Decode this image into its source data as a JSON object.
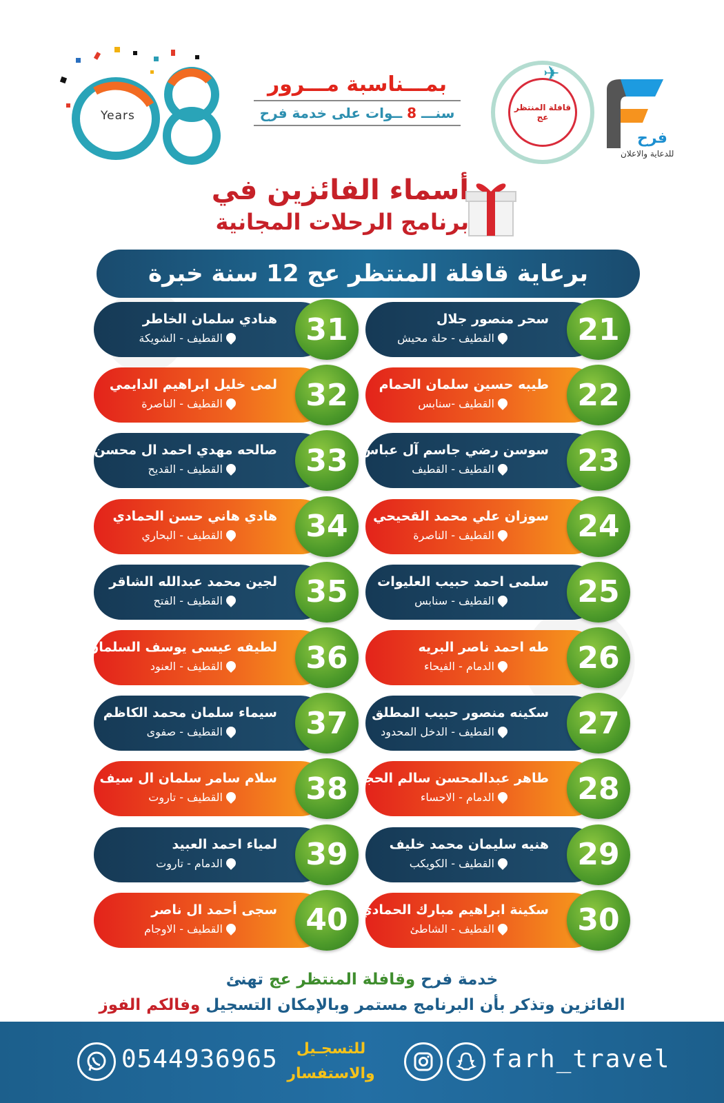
{
  "header": {
    "years_label": "Years",
    "years_number": "08",
    "occasion_line1": "بمـــناسبة مـــرور",
    "occasion_line2_a": "سنـــ",
    "occasion_line2_num": "8",
    "occasion_line2_b": "ــوات على خدمة فرح",
    "partner_name": "قافلة المنتظر عج",
    "brand_name": "فرح",
    "brand_tagline": "للدعاية والاعلان"
  },
  "title": {
    "line1": "أسماء الفائزين في",
    "line2": "برنامج الرحلات المجانية",
    "sponsor": "برعاية قافلة المنتظر عج 12 سنة خبرة"
  },
  "winners": [
    {
      "num": "21",
      "name": "سحر منصور جلال",
      "loc": "القطيف - حلة محيش"
    },
    {
      "num": "22",
      "name": "طيبه حسين سلمان الحمام",
      "loc": "القطيف -سنابس"
    },
    {
      "num": "23",
      "name": "سوسن رضي جاسم آل عباس",
      "loc": "القطيف - القطيف"
    },
    {
      "num": "24",
      "name": "سوزان علي محمد القحيحي",
      "loc": "القطيف - الناصرة"
    },
    {
      "num": "25",
      "name": "سلمى احمد حبيب العليوات",
      "loc": "القطيف - سنابس"
    },
    {
      "num": "26",
      "name": "طه احمد ناصر البريه",
      "loc": "الدمام - الفيحاء"
    },
    {
      "num": "27",
      "name": "سكينه منصور حبيب المطلق",
      "loc": "القطيف - الدخل المحدود"
    },
    {
      "num": "28",
      "name": "طاهر عبدالمحسن سالم الحجاب",
      "loc": "الدمام - الاحساء"
    },
    {
      "num": "29",
      "name": "هنيه سليمان محمد خليف",
      "loc": "القطيف - الكويكب"
    },
    {
      "num": "30",
      "name": "سكينة ابراهيم مبارك الحمادي",
      "loc": "القطيف - الشاطئ"
    },
    {
      "num": "31",
      "name": "هنادي سلمان الخاطر",
      "loc": "القطيف - الشويكة"
    },
    {
      "num": "32",
      "name": "لمى خليل ابراهيم الدايمي",
      "loc": "القطيف - الناصرة"
    },
    {
      "num": "33",
      "name": "صالحه مهدي احمد ال محسن",
      "loc": "القطيف - القديح"
    },
    {
      "num": "34",
      "name": "هادي هاني حسن الحمادي",
      "loc": "القطيف - البحاري"
    },
    {
      "num": "35",
      "name": "لجين محمد عبدالله الشاقر",
      "loc": "القطيف - الفتح"
    },
    {
      "num": "36",
      "name": "لطيفه عيسى يوسف السلمان",
      "loc": "القطيف - العنود"
    },
    {
      "num": "37",
      "name": "سيماء سلمان محمد الكاظم",
      "loc": "القطيف - صفوى"
    },
    {
      "num": "38",
      "name": "سلام سامر سلمان ال سيف",
      "loc": "القطيف - تاروت"
    },
    {
      "num": "39",
      "name": "لمياء احمد العبيد",
      "loc": "الدمام - تاروت"
    },
    {
      "num": "40",
      "name": "سجى أحمد ال ناصر",
      "loc": "القطيف - الاوجام"
    }
  ],
  "congrats": {
    "l1_a": "خدمة فرح ",
    "l1_b": "وقافلة المنتظر عج",
    "l1_c": " تهنئ",
    "l2_a": "الفائزين وتذكر بأن البرنامج مستمر وبالإمكان التسجيل ",
    "l2_b": "وفالكم الفوز"
  },
  "footer": {
    "phone": "0544936965",
    "register_line1": "للتسجـيل",
    "register_line2": "والاستفسار",
    "handle": "farh_travel"
  },
  "colors": {
    "blue_card": "#1f4e6f",
    "warm_card": "#e3231b",
    "number_badge": "#4d9a2a",
    "title_red": "#c62128",
    "footer_blue": "#236fa4"
  }
}
